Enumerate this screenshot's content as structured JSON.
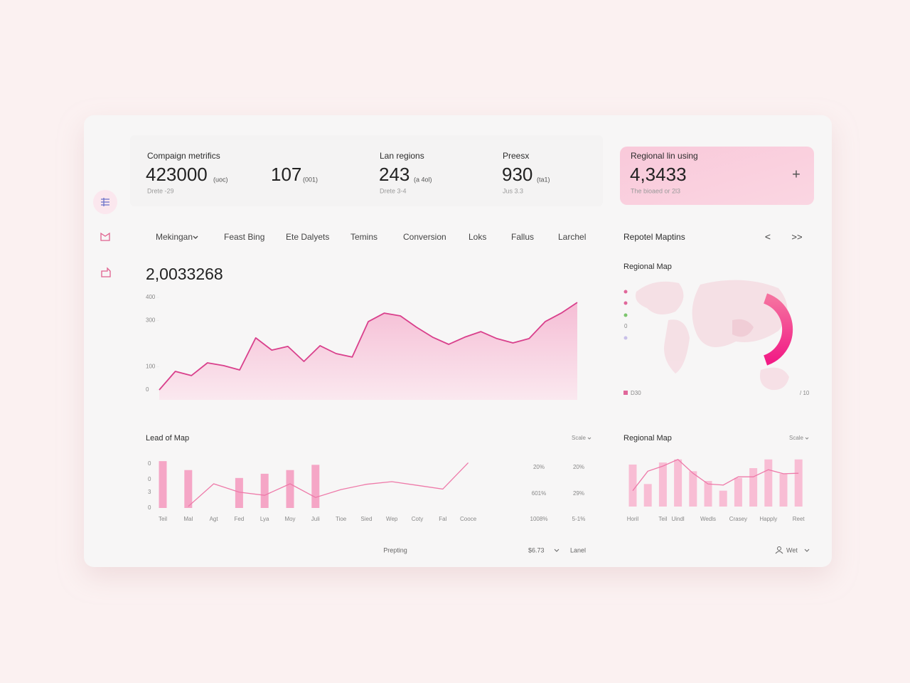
{
  "kpis": [
    {
      "label": "Compaign metrifics",
      "value": "423000",
      "unit": "(uoc)",
      "note": "Drete -29"
    },
    {
      "value": "107",
      "unit": "(001)"
    },
    {
      "label": "Lan regions",
      "value": "243",
      "unit": "(a 4ol)",
      "note": "Drete 3-4"
    },
    {
      "label": "Preesx",
      "value": "930",
      "unit": "(ta1)",
      "note": "Jus 3.3"
    }
  ],
  "highlight": {
    "label": "Regional lin using",
    "value": "4,3433",
    "note": "The bioaed or 2l3",
    "action": "+"
  },
  "tabs": [
    "Mekingan",
    "Feast Bing",
    "Ete Dalyets",
    "Temins",
    "Conversion",
    "Loks",
    "Fallus",
    "Larchel"
  ],
  "map_panel": {
    "title": "Repotel Maptins",
    "prev": "<",
    "next": ">>",
    "subtitle": "Regional Map",
    "legend_value": "0",
    "legend_label": "D30",
    "scale_note": "/ 10"
  },
  "chart_data": [
    {
      "type": "line",
      "title": "2,0033268",
      "color": "#d9408c",
      "values": [
        0,
        80,
        62,
        117,
        105,
        86,
        225,
        172,
        188,
        123,
        191,
        157,
        142,
        295,
        332,
        320,
        271,
        228,
        197,
        228,
        252,
        222,
        203,
        222,
        295,
        332,
        378
      ],
      "ylim": [
        0,
        400
      ],
      "yticks": [
        0,
        100,
        300,
        400
      ]
    },
    {
      "type": "combo",
      "title": "Lead of Map",
      "control": "Scale",
      "categories": [
        "Teil",
        "Mal",
        "Agt",
        "Fed",
        "Lya",
        "Moy",
        "Juli",
        "Tioe",
        "Sied",
        "Wep",
        "Coty",
        "Fal",
        "Cooce"
      ],
      "series": [
        {
          "type": "bar",
          "color": "#f5a6c6",
          "values": [
            89,
            72,
            null,
            57,
            65,
            72,
            82,
            null,
            null,
            null,
            null,
            null,
            null
          ]
        },
        {
          "type": "line",
          "color": "#ee7aa9",
          "values": [
            null,
            3,
            46,
            30,
            24,
            46,
            20,
            35,
            45,
            50,
            43,
            36,
            86
          ]
        }
      ],
      "ylim": [
        0,
        100
      ],
      "y_labels": [
        "0",
        "0",
        "3",
        "0"
      ],
      "side_table": [
        [
          "20%",
          "20%"
        ],
        [
          "601%",
          "29%"
        ],
        [
          "1008%",
          "5-1%"
        ]
      ]
    },
    {
      "type": "combo",
      "title": "Regional Map",
      "control": "Scale",
      "categories": [
        "Horil",
        null,
        "Teil",
        "Uindl",
        null,
        "Wedls",
        null,
        "Crasey",
        null,
        "Happly",
        null,
        "Reet"
      ],
      "series": [
        {
          "type": "bar",
          "color": "#f8bdd4",
          "values": [
            82,
            44,
            86,
            92,
            69,
            50,
            31,
            56,
            75,
            92,
            64,
            92
          ]
        },
        {
          "type": "line",
          "color": "#ee7aa9",
          "values": [
            31,
            69,
            79,
            92,
            65,
            44,
            42,
            58,
            58,
            72,
            64,
            65
          ]
        }
      ],
      "ylim": [
        0,
        100
      ]
    }
  ],
  "footer": {
    "center": "Prepting",
    "price": "$6.73",
    "label": "Lanel",
    "user": "Wet"
  }
}
